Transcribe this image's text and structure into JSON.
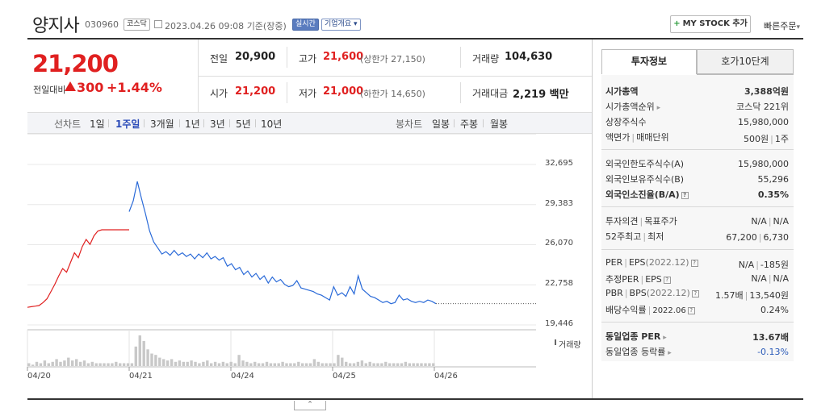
{
  "stock": {
    "name": "양지사",
    "code": "030960",
    "market": "코스닥",
    "datetime": "2023.04.26 09:08",
    "basis": "기준(장중)",
    "live_badge": "실시간",
    "info_button": "기업개요",
    "mystock_button": "MY STOCK 추가",
    "quick_order": "빠른주문"
  },
  "quote": {
    "price": "21,200",
    "change_label": "전일대비",
    "change_value": "300",
    "change_pct": "+1.44%",
    "prev_close_label": "전일",
    "prev_close": "20,900",
    "high_label": "고가",
    "high": "21,600",
    "upper_limit": "(상한가 27,150)",
    "volume_label": "거래량",
    "volume": "104,630",
    "open_label": "시가",
    "open": "21,200",
    "low_label": "저가",
    "low": "21,000",
    "lower_limit": "(하한가 14,650)",
    "amount_label": "거래대금",
    "amount": "2,219",
    "amount_unit": "백만"
  },
  "toolbar": {
    "line_chart_label": "선차트",
    "periods": [
      "1일",
      "1주일",
      "3개월",
      "1년",
      "3년",
      "5년",
      "10년"
    ],
    "active_period": "1주일",
    "candle_label": "봉차트",
    "candle_periods": [
      "일봉",
      "주봉",
      "월봉"
    ]
  },
  "chart_data": {
    "type": "line",
    "x_ticks": [
      "04/20",
      "04/21",
      "04/24",
      "04/25",
      "04/26"
    ],
    "y_ticks": [
      "32,695",
      "29,383",
      "26,070",
      "22,758",
      "19,446"
    ],
    "ylim": [
      19446,
      32695
    ],
    "current_price": 21200,
    "volume_label": "거래량",
    "series": [
      {
        "color": "#e02020",
        "values": [
          20900,
          20950,
          21000,
          21050,
          21300,
          21600,
          22200,
          22800,
          23500,
          24100,
          23800,
          24600,
          25400,
          25000,
          25900,
          26500,
          26100,
          26800,
          27200,
          27300,
          27300,
          27300,
          27300,
          27300,
          27300,
          27300,
          27300
        ]
      },
      {
        "color": "#2a6ad8",
        "values": [
          28800,
          29700,
          31300,
          29900,
          28600,
          27200,
          26300,
          25800,
          25300,
          25500,
          25200,
          25600,
          25200,
          25400,
          25100,
          25300,
          24900,
          25300,
          25000,
          25400,
          24900,
          25100,
          24800,
          25000,
          24300,
          24500,
          24000,
          24200,
          23600,
          23900,
          23400,
          23700,
          23200,
          23500,
          22900,
          23400,
          23000,
          23200,
          22800,
          22600,
          22700,
          23100,
          22500,
          22400,
          22300,
          22200,
          22000,
          21900,
          21700,
          21500,
          22600,
          21900,
          22100,
          21800,
          22600,
          22000,
          23500,
          22400,
          22100,
          21800,
          21700,
          21500,
          21300,
          21400,
          21200,
          21300,
          21900,
          21500,
          21600,
          21400,
          21300,
          21400,
          21300,
          21500,
          21400,
          21200
        ]
      }
    ],
    "volume": [
      2,
      1,
      3,
      2,
      4,
      2,
      3,
      5,
      3,
      4,
      6,
      4,
      5,
      3,
      4,
      2,
      3,
      2,
      2,
      2,
      2,
      2,
      3,
      2,
      2,
      2,
      2,
      14,
      22,
      18,
      12,
      9,
      8,
      6,
      5,
      4,
      5,
      3,
      4,
      3,
      3,
      4,
      3,
      2,
      3,
      4,
      2,
      3,
      2,
      3,
      2,
      3,
      2,
      8,
      4,
      3,
      2,
      3,
      2,
      2,
      3,
      2,
      2,
      2,
      3,
      2,
      2,
      2,
      3,
      2,
      2,
      2,
      5,
      3,
      2,
      2,
      2,
      2,
      8,
      6,
      3,
      2,
      2,
      3,
      4,
      2,
      3,
      2,
      2,
      2,
      3,
      2,
      2,
      2,
      2,
      3,
      2,
      2,
      2,
      2,
      2,
      2,
      2
    ]
  },
  "panel": {
    "tab_active": "투자정보",
    "tab_other": "호가10단계",
    "rows": {
      "mcap_label": "시가총액",
      "mcap": "3,388억원",
      "mcap_rank_label": "시가총액순위",
      "mcap_rank": "코스닥 221위",
      "shares_label": "상장주식수",
      "shares": "15,980,000",
      "par_label": "액면가",
      "unit_label": "매매단위",
      "par": "500원",
      "unit": "1주",
      "foreign_limit_label": "외국인한도주식수(A)",
      "foreign_limit": "15,980,000",
      "foreign_hold_label": "외국인보유주식수(B)",
      "foreign_hold": "55,296",
      "foreign_ratio_label": "외국인소진율(B/A)",
      "foreign_ratio": "0.35%",
      "opinion_label": "투자의견",
      "target_label": "목표주가",
      "opinion": "N/A",
      "target": "N/A",
      "high52_label": "52주최고",
      "low52_label": "최저",
      "high52": "67,200",
      "low52": "6,730",
      "per_label": "PER",
      "eps_label": "EPS",
      "per_year": "(2022.12)",
      "per": "N/A",
      "eps": "-185원",
      "est_per_label": "추정PER",
      "est_eps_label": "EPS",
      "est_per": "N/A",
      "est_eps": "N/A",
      "pbr_label": "PBR",
      "bps_label": "BPS",
      "pbr_year": "(2022.12)",
      "pbr": "1.57배",
      "bps": "13,540원",
      "div_label": "배당수익률",
      "div_year": "2022.06",
      "div": "0.24%",
      "sector_per_label": "동일업종 PER",
      "sector_per": "13.67배",
      "sector_chg_label": "동일업종 등락률",
      "sector_chg": "-0.13%"
    }
  }
}
